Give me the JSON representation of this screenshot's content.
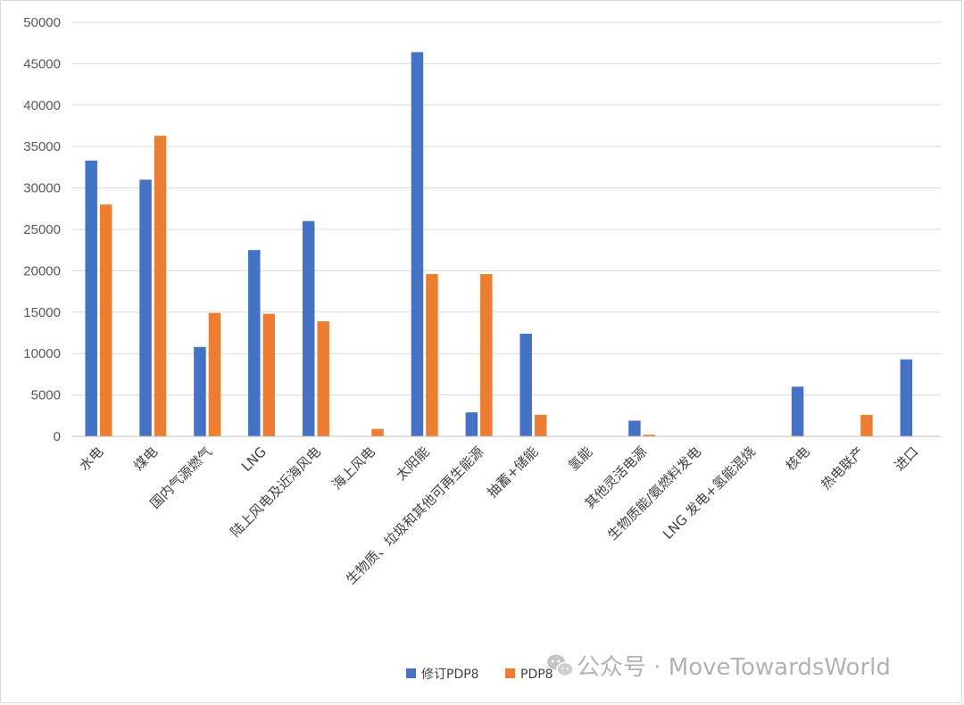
{
  "chart_data": {
    "type": "bar",
    "title": "",
    "xlabel": "",
    "ylabel": "",
    "ylim": [
      0,
      50000
    ],
    "yticks": [
      "0",
      "5000",
      "10000",
      "15000",
      "20000",
      "25000",
      "30000",
      "35000",
      "40000",
      "45000",
      "50000"
    ],
    "grid": true,
    "legend_position": "bottom",
    "categories": [
      "水电",
      "煤电",
      "国内气源燃气",
      "LNG",
      "陆上风电及近海风电",
      "海上风电",
      "太阳能",
      "生物质、垃圾和其他可再生能源",
      "抽蓄+储能",
      "氢能",
      "其他灵活电源",
      "生物质能/氨燃料发电",
      "LNG 发电+氢能混烧",
      "核电",
      "热电联产",
      "进口"
    ],
    "series": [
      {
        "name": "修订PDP8",
        "color": "#4472C4",
        "values": [
          33300,
          31000,
          10800,
          22500,
          26000,
          0,
          46400,
          2900,
          12400,
          0,
          1900,
          0,
          0,
          6000,
          0,
          9300
        ]
      },
      {
        "name": "PDP8",
        "color": "#ED7D31",
        "values": [
          28000,
          36300,
          14900,
          14800,
          13900,
          900,
          19600,
          19600,
          2600,
          0,
          200,
          0,
          0,
          0,
          2600,
          0
        ]
      }
    ]
  },
  "watermark": {
    "icon": "wechat-icon",
    "text": "公众号 · MoveTowardsWorld"
  }
}
